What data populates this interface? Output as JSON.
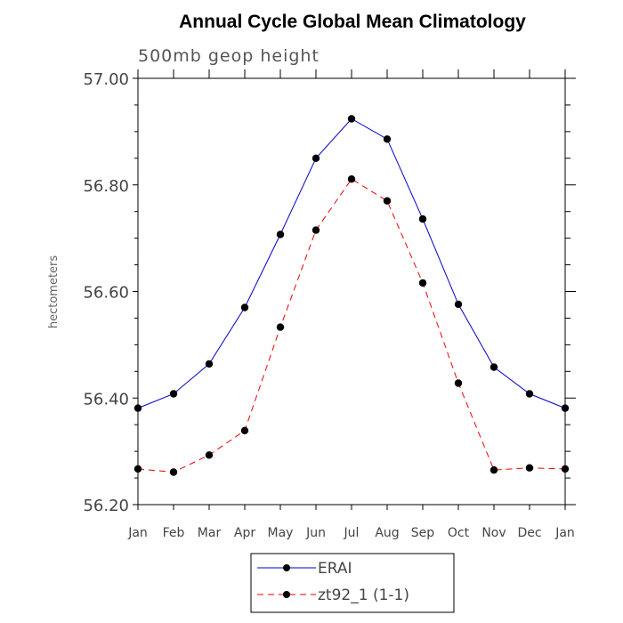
{
  "chart_data": {
    "type": "line",
    "title": "Annual Cycle Global Mean Climatology",
    "subtitle": "500mb geop height",
    "xlabel": "",
    "ylabel": "hectometers",
    "categories": [
      "Jan",
      "Feb",
      "Mar",
      "Apr",
      "May",
      "Jun",
      "Jul",
      "Aug",
      "Sep",
      "Oct",
      "Nov",
      "Dec",
      "Jan"
    ],
    "ylim": [
      56.2,
      57.0
    ],
    "yticks": [
      "56.20",
      "56.40",
      "56.60",
      "56.80",
      "57.00"
    ],
    "yticks_values": [
      56.2,
      56.4,
      56.6,
      56.8,
      57.0
    ],
    "grid": false,
    "legend_position": "bottom-center",
    "series": [
      {
        "name": "ERAI",
        "color": "#0000cc",
        "dash": "solid",
        "marker": "filled-circle",
        "values": [
          56.381,
          56.408,
          56.464,
          56.57,
          56.707,
          56.85,
          56.924,
          56.886,
          56.736,
          56.576,
          56.458,
          56.408,
          56.381
        ]
      },
      {
        "name": "zt92_1 (1-1)",
        "color": "#ee0000",
        "dash": "dashed",
        "marker": "filled-circle",
        "values": [
          56.267,
          56.261,
          56.293,
          56.339,
          56.533,
          56.715,
          56.811,
          56.77,
          56.616,
          56.428,
          56.265,
          56.269,
          56.267
        ]
      }
    ]
  }
}
